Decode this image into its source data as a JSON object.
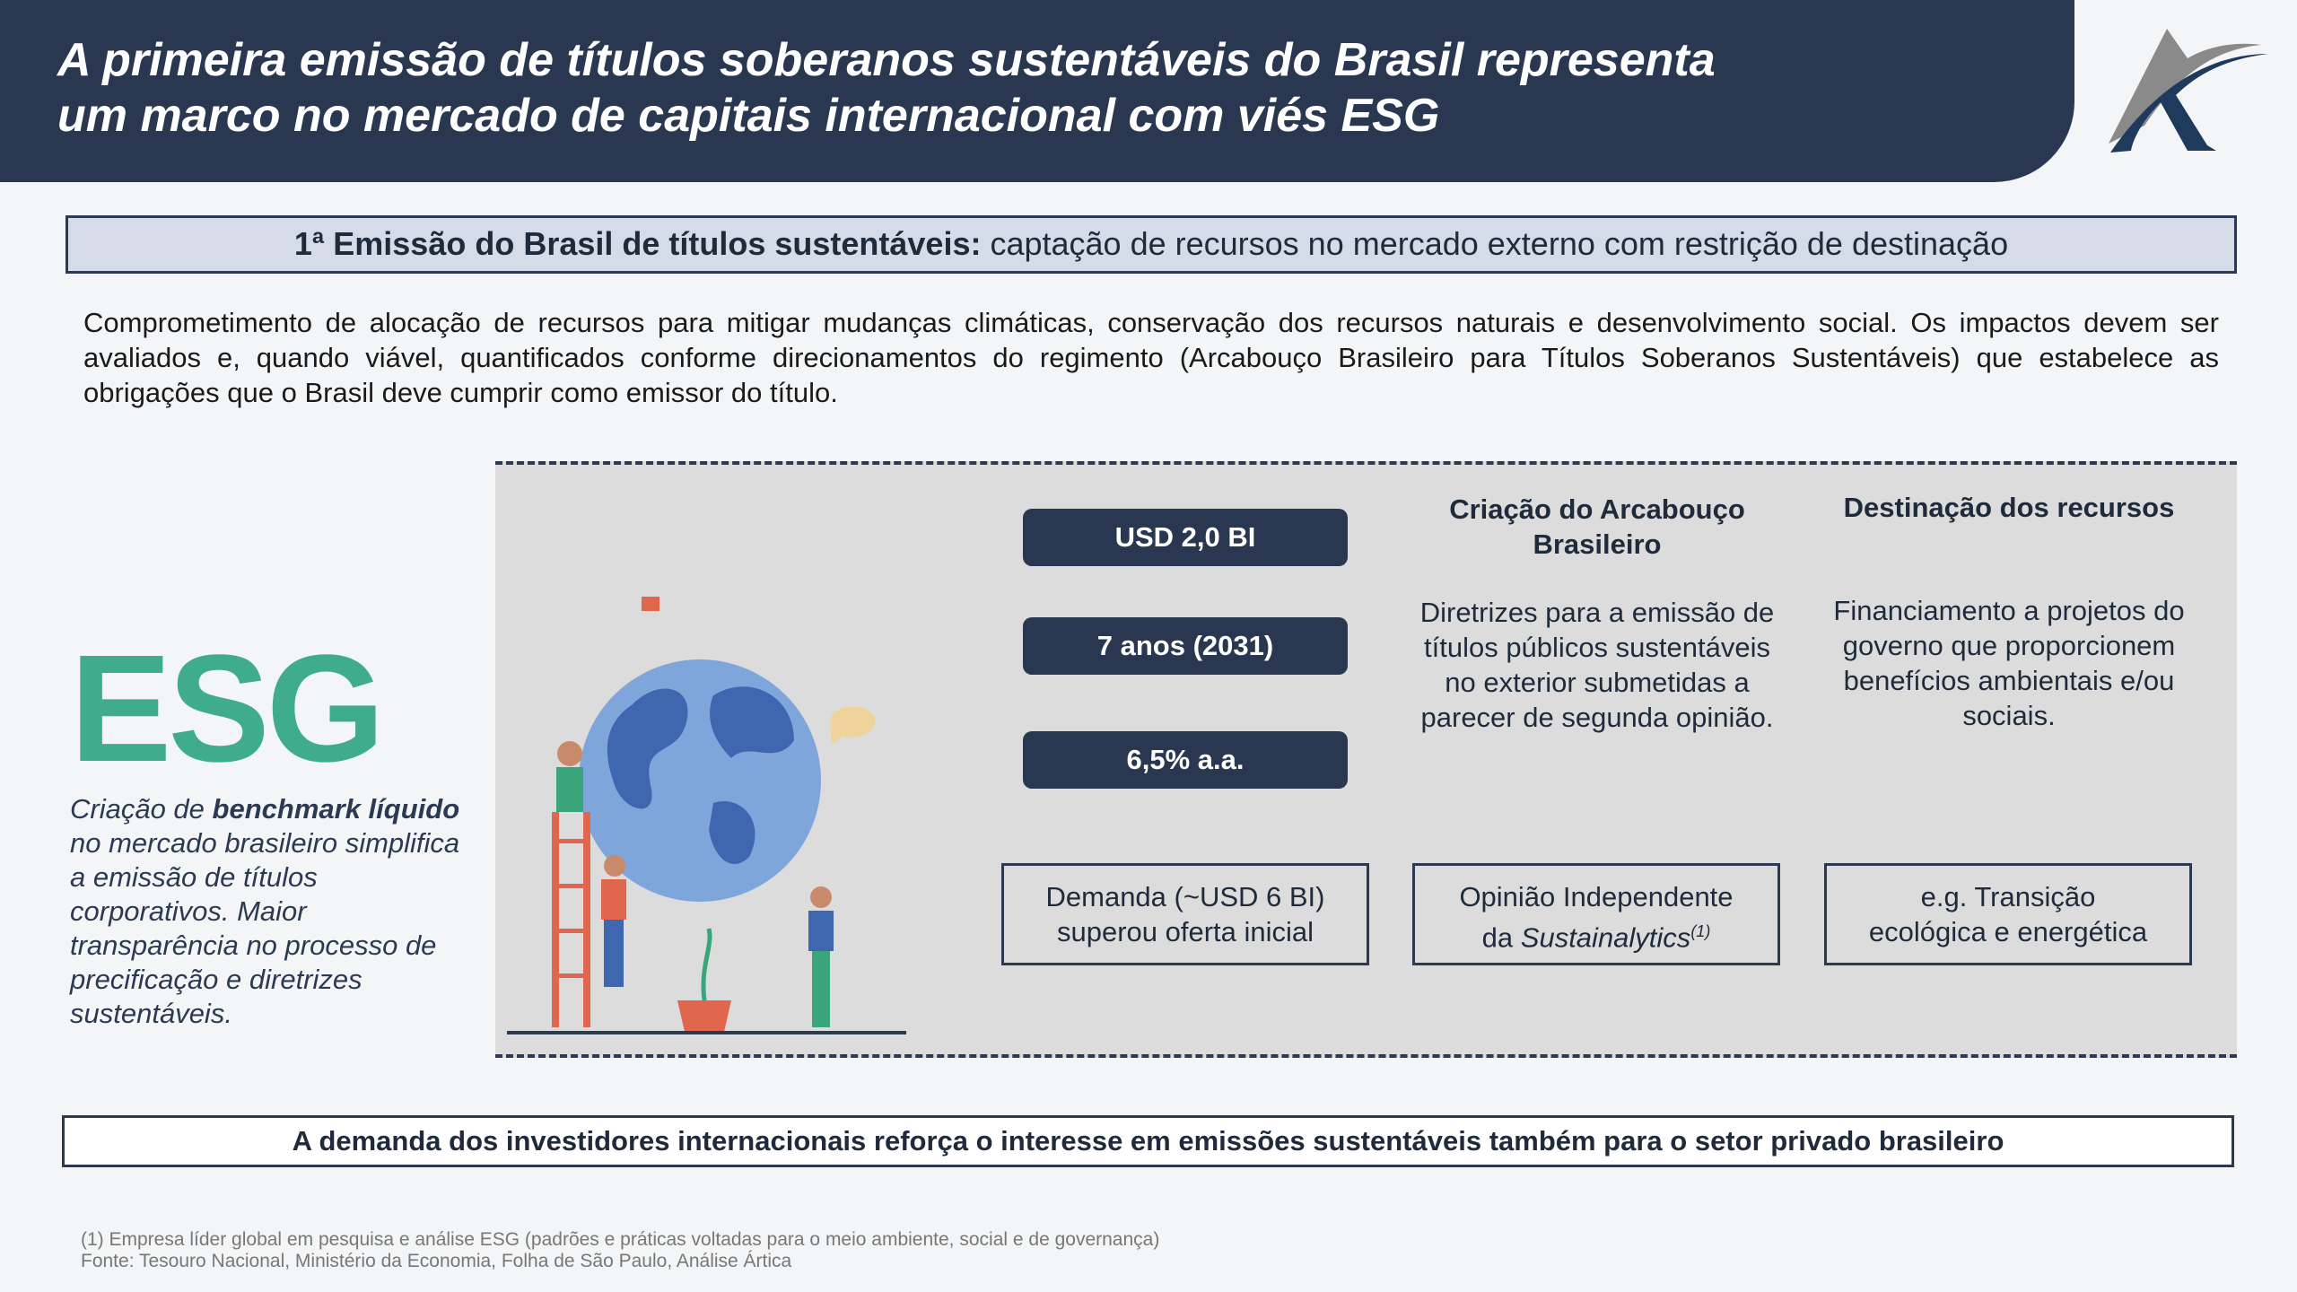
{
  "header": {
    "title_line1": "A primeira emissão de títulos soberanos sustentáveis do Brasil representa",
    "title_line2": "um marco no mercado de capitais internacional com viés ESG",
    "logo_colors": {
      "navy": "#1e3a5c",
      "grey": "#8a8a8a"
    }
  },
  "banner": {
    "bold": "1ª Emissão do Brasil de títulos sustentáveis:",
    "regular": " captação de recursos no mercado externo com restrição de destinação"
  },
  "paragraph": "Comprometimento de alocação de recursos para mitigar mudanças climáticas, conservação dos recursos naturais e desenvolvimento social. Os impactos devem ser avaliados e, quando viável, quantificados conforme direcionamentos do regimento (Arcabouço Brasileiro para Títulos Soberanos Sustentáveis) que estabelece as obrigações que o Brasil deve cumprir como emissor do título.",
  "esg": {
    "label": "ESG",
    "color": "#40ad8a",
    "t1": "Criação de ",
    "t2": "benchmark líquido",
    "t3": " no mercado brasileiro simplifica a emissão de títulos corporativos. Maior transparência no processo de precificação e diretrizes sustentáveis."
  },
  "pills": [
    "USD 2,0 BI",
    "7 anos (2031)",
    "6,5% a.a."
  ],
  "columns": [
    {
      "title": "Criação do Arcabouço Brasileiro",
      "desc": "Diretrizes para a emissão de títulos públicos sustentáveis no exterior submetidas a parecer de segunda opinião."
    },
    {
      "title": "Destinação dos recursos",
      "desc": "Financiamento a projetos do governo que proporcionem benefícios ambientais e/ou sociais."
    }
  ],
  "boxes": [
    {
      "line1": "Demanda (~USD 6 BI)",
      "line2": "superou oferta inicial"
    },
    {
      "line1": "Opinião Independente",
      "line2a": "da ",
      "line2b": "Sustainalytics",
      "sup": "(1)"
    },
    {
      "line1": "e.g. Transição",
      "line2": "ecológica e energética"
    }
  ],
  "bottom": "A demanda dos investidores internacionais reforça o interesse em emissões sustentáveis também para o setor privado brasileiro",
  "footnote": {
    "note": "(1) Empresa líder global em pesquisa e análise ESG (padrões e práticas voltadas para o meio ambiente, social e de governança)",
    "source": "Fonte: Tesouro Nacional, Ministério da Economia, Folha de São Paulo, Análise Ártica"
  }
}
